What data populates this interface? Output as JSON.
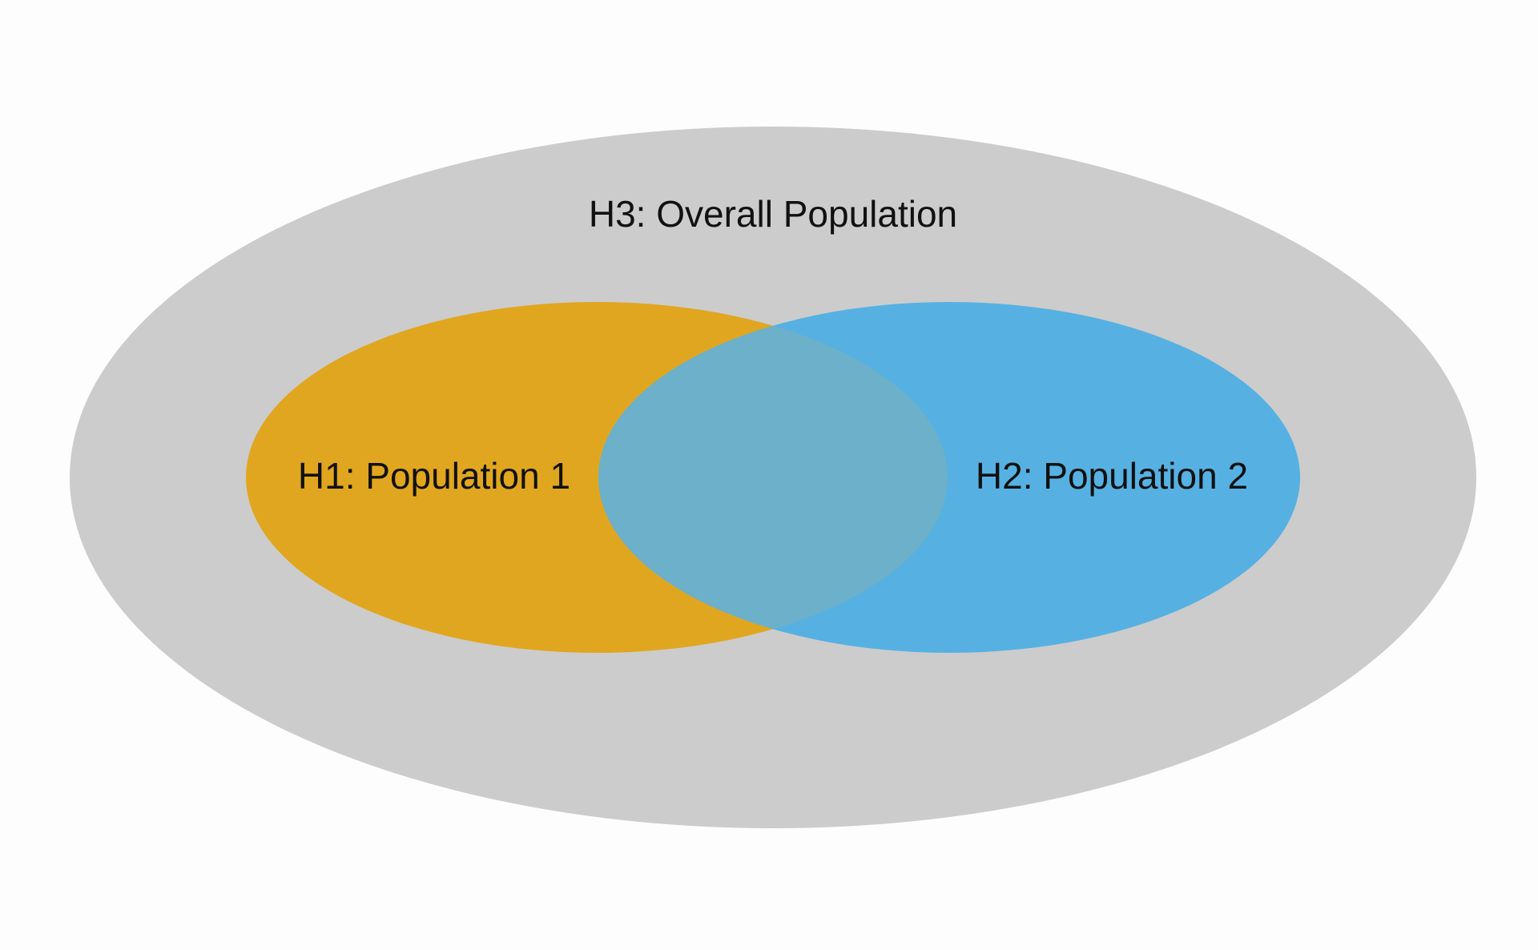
{
  "diagram": {
    "outer": {
      "label": "H3: Overall Population",
      "color": "#cccccc"
    },
    "set_left": {
      "label": "H1: Population 1",
      "color": "#e1a61f"
    },
    "set_right": {
      "label": "H2: Population 2",
      "color": "#56b1e2"
    },
    "overlap_color": "#6db0c9"
  }
}
